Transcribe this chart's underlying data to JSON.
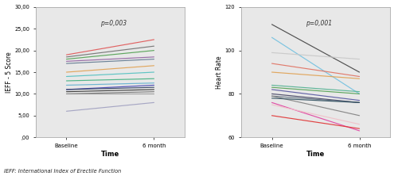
{
  "left_title": "p=0,003",
  "right_title": "p=0,001",
  "left_ylabel": "IEFF - 5 Score",
  "right_ylabel": "Heart Rate",
  "xlabel": "Time",
  "x_labels": [
    "Baseline",
    "6 month"
  ],
  "left_ylim": [
    0,
    30
  ],
  "right_ylim": [
    60,
    120
  ],
  "left_yticks": [
    0.0,
    5.0,
    10.0,
    15.0,
    20.0,
    25.0,
    30.0
  ],
  "right_yticks": [
    60,
    80,
    100,
    120
  ],
  "left_ytick_labels": [
    ",00",
    "5,00",
    "10,00",
    "15,00",
    "20,00",
    "25,00",
    "30,00"
  ],
  "right_ytick_labels": [
    "60",
    "80",
    "100",
    "120"
  ],
  "caption": "IEFF: International Index of Erectile Function",
  "fig_bg_color": "#ffffff",
  "plot_bg_color": "#e8e8e8",
  "left_lines": [
    {
      "baseline": 19.0,
      "six_month": 22.5,
      "color": "#e05555"
    },
    {
      "baseline": 18.5,
      "six_month": 21.0,
      "color": "#707070"
    },
    {
      "baseline": 18.0,
      "six_month": 20.0,
      "color": "#50a050"
    },
    {
      "baseline": 17.5,
      "six_month": 18.5,
      "color": "#9060a0"
    },
    {
      "baseline": 17.0,
      "six_month": 18.0,
      "color": "#607890"
    },
    {
      "baseline": 15.0,
      "six_month": 16.5,
      "color": "#e0a050"
    },
    {
      "baseline": 14.0,
      "six_month": 15.0,
      "color": "#50c0c0"
    },
    {
      "baseline": 13.0,
      "six_month": 13.5,
      "color": "#40b080"
    },
    {
      "baseline": 12.0,
      "six_month": 12.5,
      "color": "#60b0d0"
    },
    {
      "baseline": 11.0,
      "six_month": 12.0,
      "color": "#4040b0"
    },
    {
      "baseline": 11.0,
      "six_month": 11.5,
      "color": "#304060"
    },
    {
      "baseline": 10.5,
      "six_month": 11.0,
      "color": "#303030"
    },
    {
      "baseline": 10.0,
      "six_month": 10.5,
      "color": "#707070"
    },
    {
      "baseline": 10.0,
      "six_month": 10.0,
      "color": "#999999"
    },
    {
      "baseline": 6.0,
      "six_month": 8.0,
      "color": "#a0a0c0"
    }
  ],
  "right_lines": [
    {
      "baseline": 112,
      "six_month": 90,
      "color": "#404040"
    },
    {
      "baseline": 106,
      "six_month": 80,
      "color": "#70c0e0"
    },
    {
      "baseline": 99,
      "six_month": 96,
      "color": "#c8c8c8"
    },
    {
      "baseline": 94,
      "six_month": 88,
      "color": "#e07060"
    },
    {
      "baseline": 90,
      "six_month": 87,
      "color": "#e0a050"
    },
    {
      "baseline": 84,
      "six_month": 81,
      "color": "#50b090"
    },
    {
      "baseline": 83,
      "six_month": 80,
      "color": "#50a050"
    },
    {
      "baseline": 82,
      "six_month": 77,
      "color": "#5555a0"
    },
    {
      "baseline": 80,
      "six_month": 76,
      "color": "#404060"
    },
    {
      "baseline": 79,
      "six_month": 76,
      "color": "#607080"
    },
    {
      "baseline": 79,
      "six_month": 70,
      "color": "#808080"
    },
    {
      "baseline": 78,
      "six_month": 76,
      "color": "#305060"
    },
    {
      "baseline": 76,
      "six_month": 63,
      "color": "#e040a0"
    },
    {
      "baseline": 75,
      "six_month": 66,
      "color": "#f0c0c8"
    },
    {
      "baseline": 70,
      "six_month": 64,
      "color": "#e03030"
    }
  ]
}
